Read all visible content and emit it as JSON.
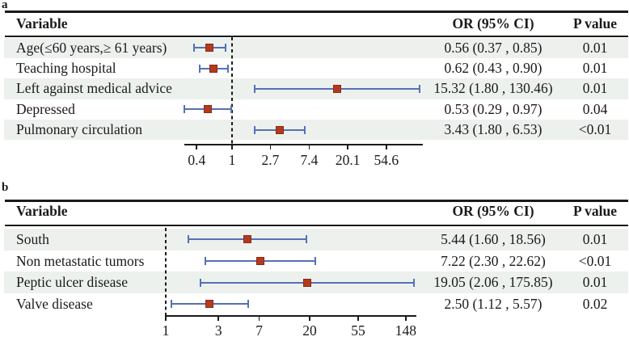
{
  "figure": {
    "description_label": "forest plot of odds ratios"
  },
  "colors": {
    "marker_fill": "#b23b1f",
    "marker_border": "#8a2a15",
    "ci_line": "#5570b8",
    "row_shade": "#edf1ee",
    "rule": "#1a1a1a",
    "text": "#1a1a1a",
    "background": "#ffffff"
  },
  "chart_data": [
    {
      "type": "forest",
      "panel_label": "a",
      "xscale": "log",
      "reference_line": 1,
      "legend": "none",
      "grid": false,
      "xticks": {
        "values": [
          0.4,
          1,
          2.7,
          7.4,
          20.1,
          54.6
        ],
        "labels": [
          "0.4",
          "1",
          "2.7",
          "7.4",
          "20.1",
          "54.6"
        ]
      },
      "columns": {
        "variable": "Variable",
        "or": "OR (95% CI)",
        "p": "P value"
      },
      "rows": [
        {
          "variable": "Age(≤60 years,≥ 61 years)",
          "or": 0.56,
          "ci_low": 0.37,
          "ci_high": 0.85,
          "or_ci_text": "0.56 (0.37 , 0.85)",
          "p_value": "0.01"
        },
        {
          "variable": "Teaching hospital",
          "or": 0.62,
          "ci_low": 0.43,
          "ci_high": 0.9,
          "or_ci_text": "0.62 (0.43 , 0.90)",
          "p_value": "0.01"
        },
        {
          "variable": "Left against medical advice",
          "or": 15.32,
          "ci_low": 1.8,
          "ci_high": 130.46,
          "or_ci_text": "15.32 (1.80 , 130.46)",
          "p_value": "0.01"
        },
        {
          "variable": "Depressed",
          "or": 0.53,
          "ci_low": 0.29,
          "ci_high": 0.97,
          "or_ci_text": "0.53 (0.29 , 0.97)",
          "p_value": "0.04"
        },
        {
          "variable": "Pulmonary circulation",
          "or": 3.43,
          "ci_low": 1.8,
          "ci_high": 6.53,
          "or_ci_text": "3.43 (1.80 , 6.53)",
          "p_value": "<0.01"
        }
      ]
    },
    {
      "type": "forest",
      "panel_label": "b",
      "xscale": "log",
      "reference_line": 1,
      "legend": "none",
      "grid": false,
      "xticks": {
        "values": [
          1,
          3,
          7,
          20,
          55,
          148
        ],
        "labels": [
          "1",
          "3",
          "7",
          "20",
          "55",
          "148"
        ]
      },
      "columns": {
        "variable": "Variable",
        "or": "OR (95% CI)",
        "p": "P value"
      },
      "rows": [
        {
          "variable": "South",
          "or": 5.44,
          "ci_low": 1.6,
          "ci_high": 18.56,
          "or_ci_text": "5.44 (1.60 , 18.56)",
          "p_value": "0.01"
        },
        {
          "variable": "Non metastatic tumors",
          "or": 7.22,
          "ci_low": 2.3,
          "ci_high": 22.62,
          "or_ci_text": "7.22 (2.30 , 22.62)",
          "p_value": "<0.01"
        },
        {
          "variable": "Peptic ulcer disease",
          "or": 19.05,
          "ci_low": 2.06,
          "ci_high": 175.85,
          "or_ci_text": "19.05 (2.06 , 175.85)",
          "p_value": "0.01"
        },
        {
          "variable": "Valve disease",
          "or": 2.5,
          "ci_low": 1.12,
          "ci_high": 5.57,
          "or_ci_text": "2.50 (1.12 , 5.57)",
          "p_value": "0.02"
        }
      ]
    }
  ]
}
